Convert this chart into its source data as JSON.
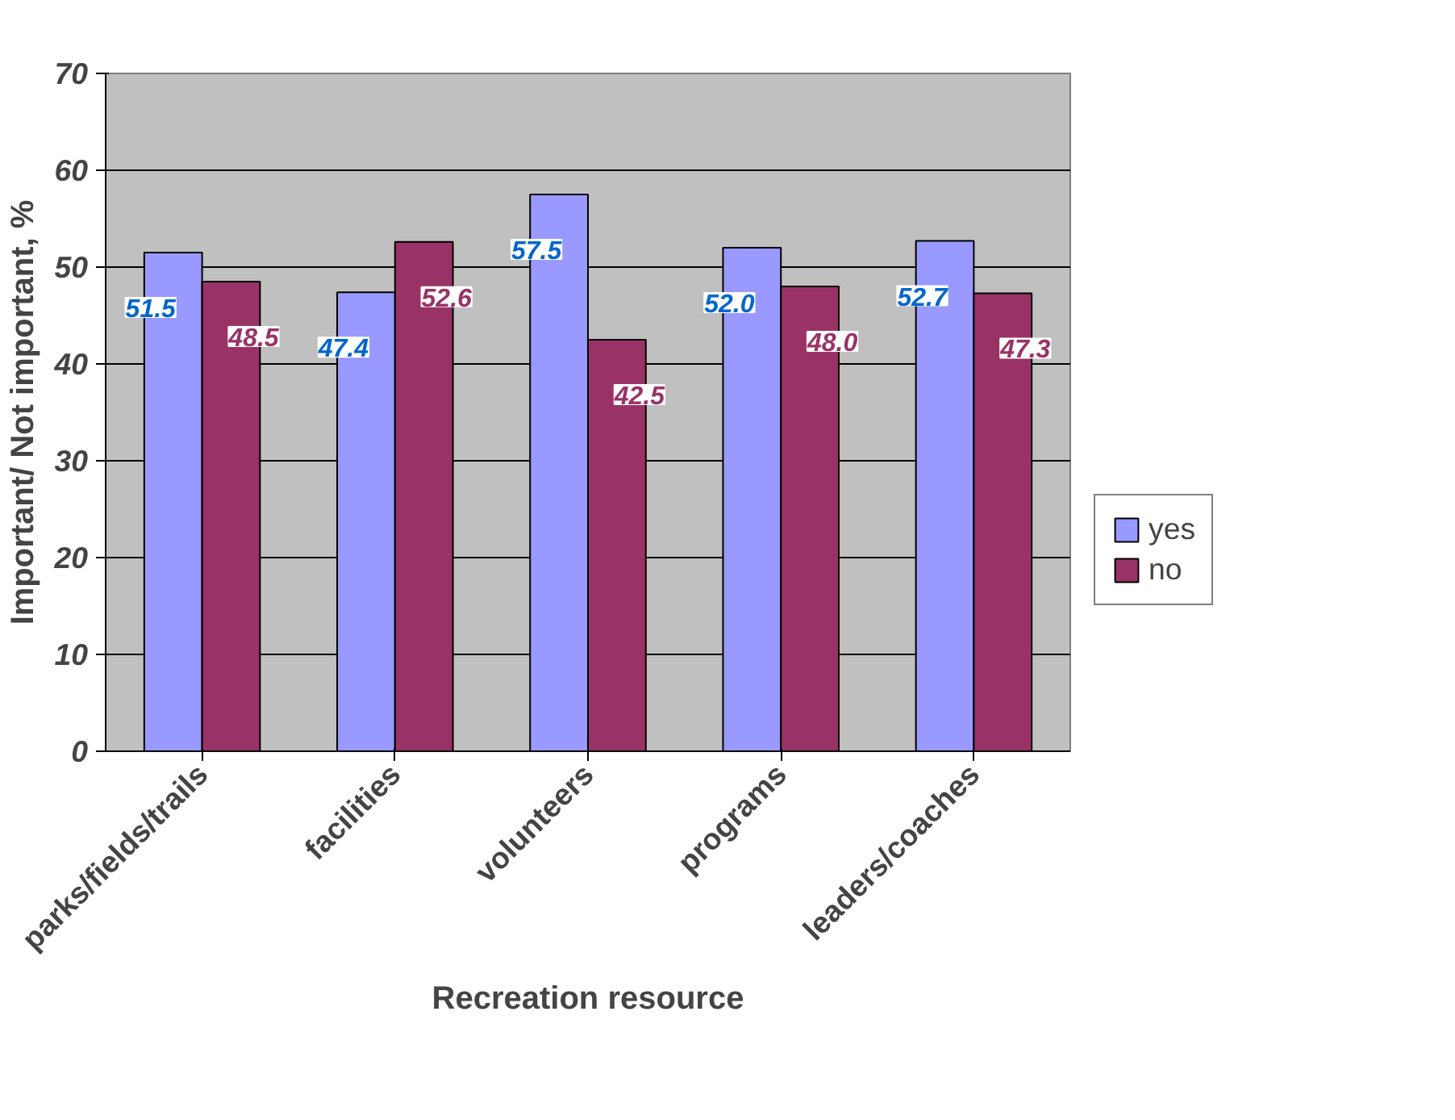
{
  "chart_data": {
    "type": "bar",
    "xlabel": "Recreation resource",
    "ylabel": "Important/ Not important, %",
    "categories": [
      "parks/fields/trails",
      "facilities",
      "volunteers",
      "programs",
      "leaders/coaches"
    ],
    "series": [
      {
        "name": "yes",
        "color": "#9999ff",
        "values": [
          51.5,
          47.4,
          57.5,
          52.0,
          52.7
        ],
        "value_labels": [
          "51.5",
          "47.4",
          "57.5",
          "52.0",
          "52.7"
        ]
      },
      {
        "name": "no",
        "color": "#993366",
        "values": [
          48.5,
          52.6,
          42.5,
          48.0,
          47.3
        ],
        "value_labels": [
          "48.5",
          "52.6",
          "42.5",
          "48.0",
          "47.3"
        ]
      }
    ],
    "ylim": [
      0,
      70
    ],
    "yticks": [
      0,
      10,
      20,
      30,
      40,
      50,
      60,
      70
    ],
    "grid": "y",
    "legend": "right"
  }
}
